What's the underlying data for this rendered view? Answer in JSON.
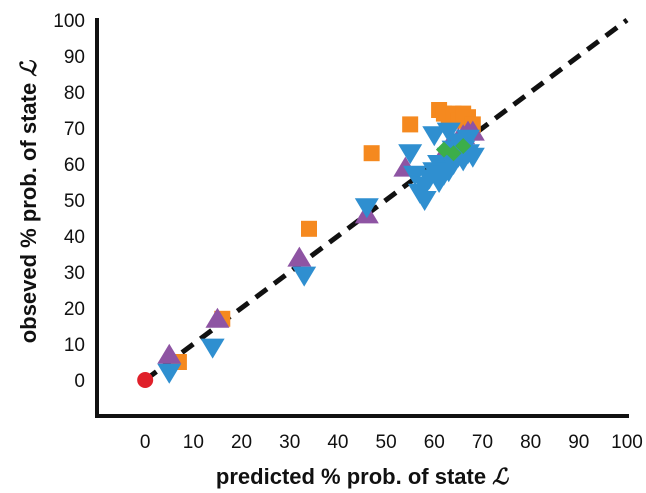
{
  "chart_data": {
    "type": "scatter",
    "xlabel_prefix": "predicted % prob. of state",
    "ylabel_prefix": "obseved % prob. of state",
    "state_symbol": "ℒ",
    "xlim": [
      -10,
      100
    ],
    "ylim": [
      -10,
      100
    ],
    "xticks": [
      "0",
      "10",
      "20",
      "30",
      "40",
      "50",
      "60",
      "70",
      "80",
      "90",
      "100"
    ],
    "yticks": [
      "0",
      "10",
      "20",
      "30",
      "40",
      "50",
      "60",
      "70",
      "80",
      "90",
      "100"
    ],
    "reference_line": {
      "style": "dashed",
      "color": "#111111",
      "from": [
        0,
        0
      ],
      "to": [
        100,
        100
      ]
    },
    "series": [
      {
        "marker": "square",
        "color": "#f5891f",
        "points": [
          [
            16,
            17
          ],
          [
            34,
            42
          ],
          [
            47,
            63
          ],
          [
            55,
            71
          ],
          [
            61,
            75
          ],
          [
            62,
            74
          ],
          [
            63,
            73
          ],
          [
            64,
            74
          ],
          [
            65,
            72
          ],
          [
            66,
            74
          ],
          [
            67,
            73
          ],
          [
            68,
            71
          ],
          [
            7,
            5
          ]
        ]
      },
      {
        "marker": "triangle-up",
        "color": "#8e54a3",
        "points": [
          [
            5,
            7
          ],
          [
            15,
            17
          ],
          [
            32,
            34
          ],
          [
            46,
            46
          ],
          [
            54,
            59
          ],
          [
            63,
            65
          ],
          [
            65,
            67
          ],
          [
            66,
            68
          ],
          [
            67,
            69
          ],
          [
            68,
            69
          ]
        ]
      },
      {
        "marker": "triangle-down",
        "color": "#2f8fd0",
        "points": [
          [
            5,
            2
          ],
          [
            14,
            9
          ],
          [
            33,
            29
          ],
          [
            46,
            48
          ],
          [
            55,
            63
          ],
          [
            56,
            57
          ],
          [
            57,
            52
          ],
          [
            58,
            54
          ],
          [
            58,
            50
          ],
          [
            59,
            56
          ],
          [
            60,
            58
          ],
          [
            60,
            68
          ],
          [
            61,
            55
          ],
          [
            61,
            60
          ],
          [
            62,
            57
          ],
          [
            63,
            62
          ],
          [
            63,
            58
          ],
          [
            63,
            69
          ],
          [
            64,
            60
          ],
          [
            64,
            64
          ],
          [
            65,
            62
          ],
          [
            65,
            66
          ],
          [
            66,
            61
          ],
          [
            66,
            64
          ],
          [
            67,
            63
          ],
          [
            67,
            67
          ],
          [
            68,
            62
          ]
        ]
      },
      {
        "marker": "diamond",
        "color": "#3cae4a",
        "points": [
          [
            62,
            64
          ],
          [
            64,
            63
          ],
          [
            66,
            65
          ]
        ]
      },
      {
        "marker": "circle",
        "color": "#e0202a",
        "points": [
          [
            0,
            0
          ]
        ]
      }
    ]
  }
}
